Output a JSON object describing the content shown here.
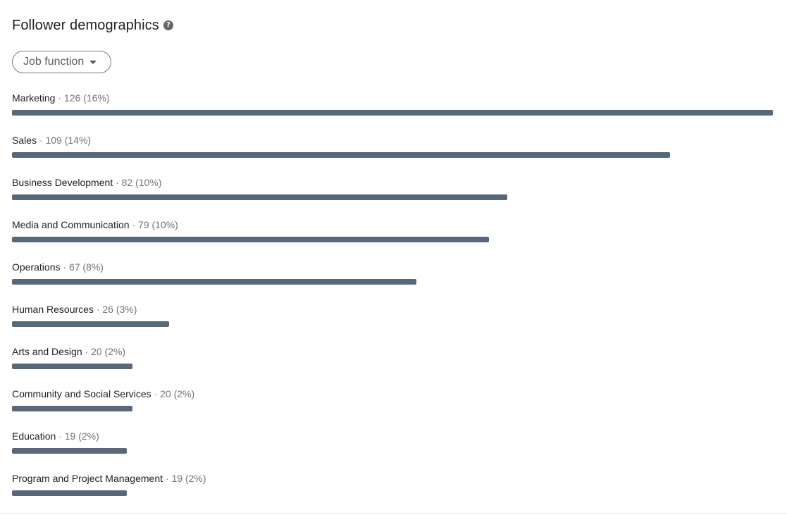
{
  "header": {
    "title": "Follower demographics",
    "help_glyph": "?"
  },
  "filter": {
    "selected": "Job function"
  },
  "colors": {
    "bar": "#56687a"
  },
  "demographics": [
    {
      "name": "Marketing",
      "count": "126",
      "percent": "(16%)",
      "value": 126
    },
    {
      "name": "Sales",
      "count": "109",
      "percent": "(14%)",
      "value": 109
    },
    {
      "name": "Business Development",
      "count": "82",
      "percent": "(10%)",
      "value": 82
    },
    {
      "name": "Media and Communication",
      "count": "79",
      "percent": "(10%)",
      "value": 79
    },
    {
      "name": "Operations",
      "count": "67",
      "percent": "(8%)",
      "value": 67
    },
    {
      "name": "Human Resources",
      "count": "26",
      "percent": "(3%)",
      "value": 26
    },
    {
      "name": "Arts and Design",
      "count": "20",
      "percent": "(2%)",
      "value": 20
    },
    {
      "name": "Community and Social Services",
      "count": "20",
      "percent": "(2%)",
      "value": 20
    },
    {
      "name": "Education",
      "count": "19",
      "percent": "(2%)",
      "value": 19
    },
    {
      "name": "Program and Project Management",
      "count": "19",
      "percent": "(2%)",
      "value": 19
    }
  ]
}
